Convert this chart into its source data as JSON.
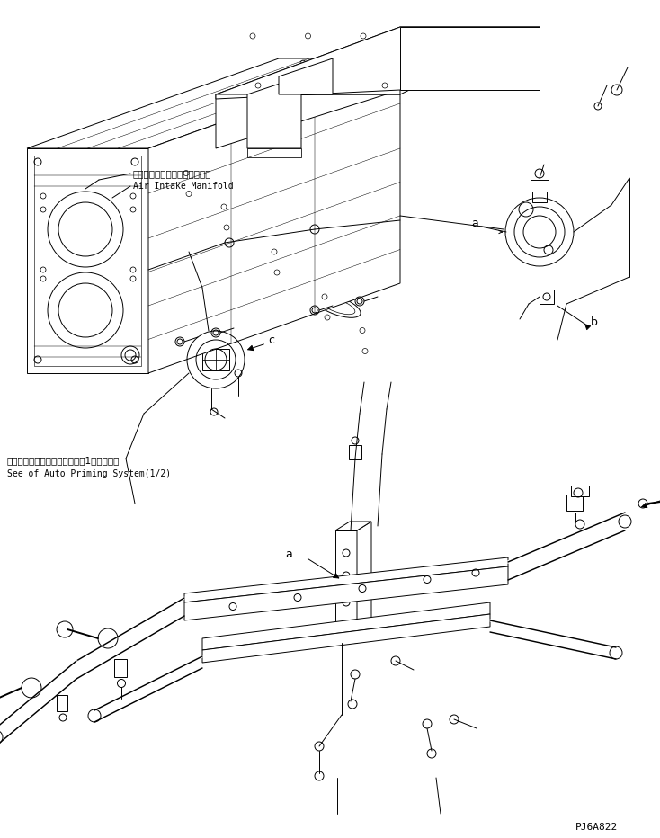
{
  "background_color": "#ffffff",
  "line_color": "#000000",
  "title_jp": "オートプライミングシステム（1／２）参照",
  "title_en": "See of Auto Priming System(1/2)",
  "label_air_jp": "エアーインテークマニホールド",
  "label_air_en": "Air Intake Manifold",
  "part_number": "PJ6A822",
  "fig_width": 7.34,
  "fig_height": 9.32,
  "dpi": 100
}
